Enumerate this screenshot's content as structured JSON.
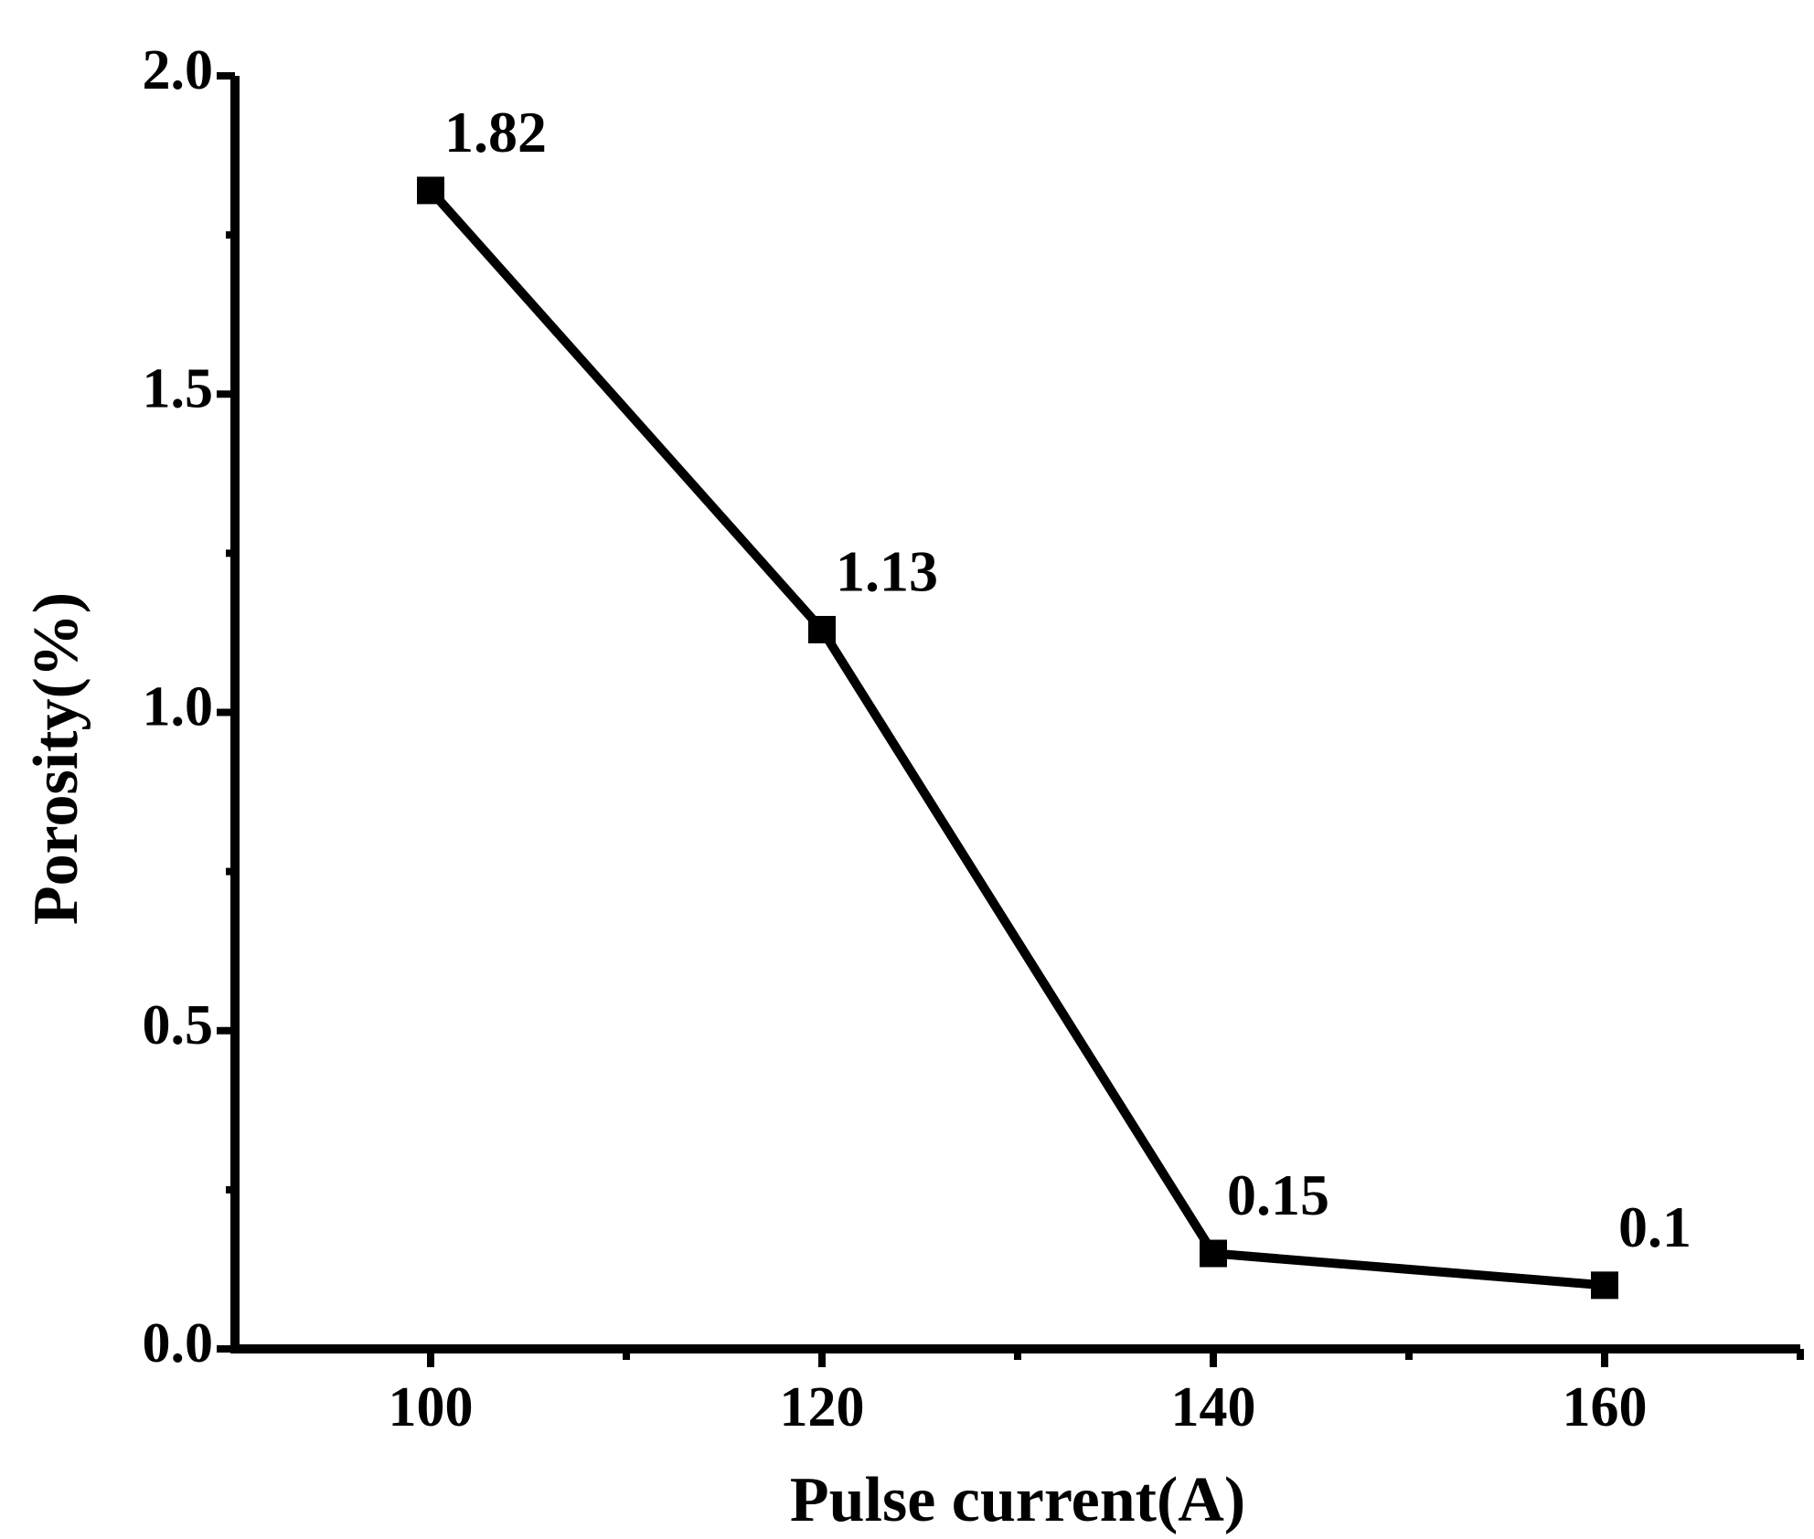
{
  "chart_data": {
    "type": "line",
    "x_label": "Pulse current(A)",
    "y_label": "Porosity(%)",
    "x": [
      100,
      120,
      140,
      160
    ],
    "series": [
      {
        "color": "#000000",
        "marker": "square",
        "values": [
          1.82,
          1.13,
          0.15,
          0.1
        ]
      }
    ],
    "xlim": [
      90,
      170
    ],
    "xticks": [
      100,
      120,
      140,
      160
    ],
    "x_minor_ticks": [
      110,
      130,
      150,
      170
    ],
    "ylim": [
      0,
      2
    ],
    "yticks": [
      {
        "value": 0,
        "label": "0.0"
      },
      0.5,
      {
        "value": 1,
        "label": "1.0"
      },
      1.5,
      {
        "value": 2,
        "label": "2.0"
      }
    ],
    "y_minor_ticks": [
      0.25,
      0.75,
      1.25,
      1.75
    ],
    "grid": false
  }
}
